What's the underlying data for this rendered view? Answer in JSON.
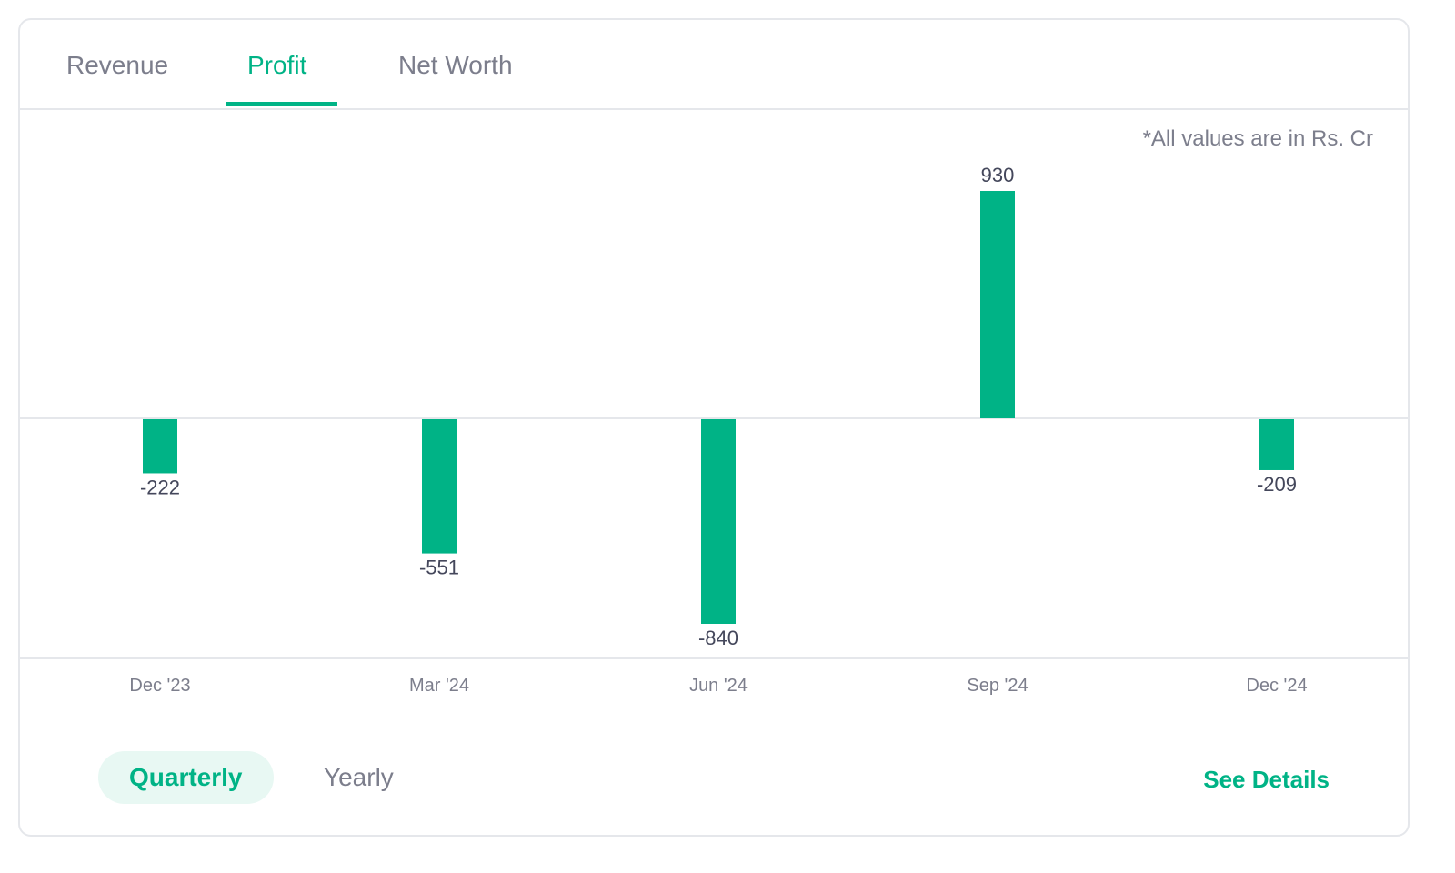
{
  "tabs": [
    {
      "label": "Revenue",
      "active": false
    },
    {
      "label": "Profit",
      "active": true
    },
    {
      "label": "Net Worth",
      "active": false
    }
  ],
  "unit_note": "*All values are in Rs. Cr",
  "period_toggle": {
    "quarterly_label": "Quarterly",
    "yearly_label": "Yearly",
    "selected": "Quarterly"
  },
  "see_details_label": "See Details",
  "colors": {
    "accent": "#00b386",
    "muted_text": "#7c7e8c",
    "value_text": "#44475b",
    "grid": "#e5e7eb"
  },
  "chart_data": {
    "type": "bar",
    "categories": [
      "Dec '23",
      "Mar '24",
      "Jun '24",
      "Sep '24",
      "Dec '24"
    ],
    "values": [
      -222,
      -551,
      -840,
      930,
      -209
    ],
    "title": "",
    "xlabel": "",
    "ylabel": "",
    "ylim": [
      -840,
      930
    ]
  }
}
